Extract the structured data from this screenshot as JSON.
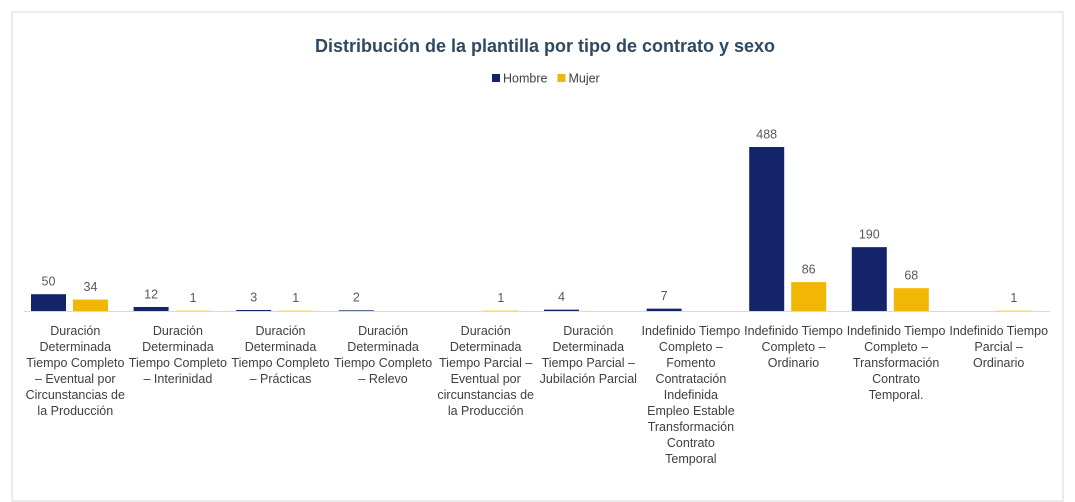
{
  "chart_data": {
    "type": "bar",
    "title": "Distribución de la plantilla por tipo de contrato y sexo",
    "categories": [
      "Duración Determinada Tiempo Completo – Eventual por Circunstancias de la Producción",
      "Duración Determinada Tiempo Completo – Interinidad",
      "Duración Determinada Tiempo Completo – Prácticas",
      "Duración Determinada Tiempo Completo – Relevo",
      "Duración Determinada Tiempo Parcial – Eventual por circunstancias de la Producción",
      "Duración Determinada Tiempo Parcial – Jubilación Parcial",
      "Indefinido Tiempo Completo – Fomento Contratación Indefinida Empleo Estable Transformación Contrato Temporal",
      "Indefinido Tiempo Completo – Ordinario",
      "Indefinido Tiempo Completo – Transformación Contrato Temporal.",
      "Indefinido Tiempo Parcial – Ordinario"
    ],
    "series": [
      {
        "name": "Hombre",
        "color": "#14246a",
        "values": [
          50,
          12,
          3,
          2,
          null,
          4,
          7,
          488,
          190,
          null
        ]
      },
      {
        "name": "Mujer",
        "color": "#f2b705",
        "values": [
          34,
          1,
          1,
          null,
          1,
          null,
          null,
          86,
          68,
          1
        ]
      }
    ],
    "legend": "top"
  }
}
